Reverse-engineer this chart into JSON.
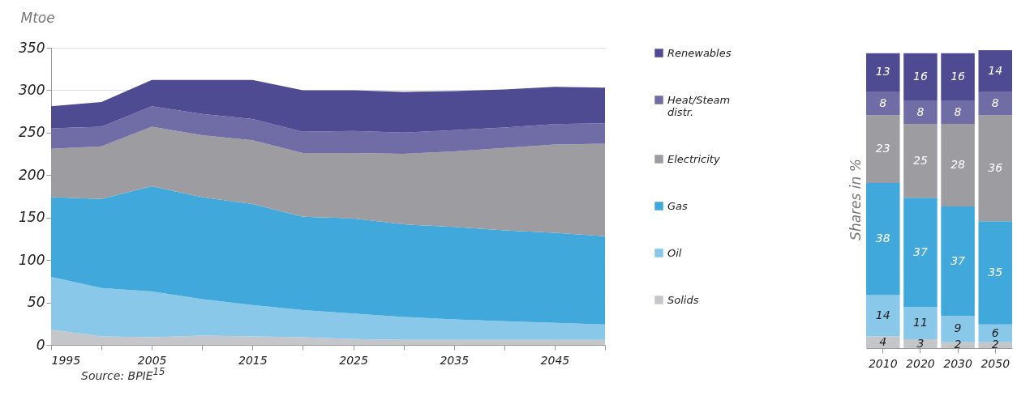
{
  "chart_data": [
    {
      "type": "area",
      "ylabel": "Mtoe",
      "stacked": true,
      "grid": "y",
      "legend": "right",
      "x": [
        1995,
        2000,
        2005,
        2010,
        2015,
        2020,
        2025,
        2030,
        2035,
        2040,
        2045,
        2050
      ],
      "xlim": [
        1995,
        2050
      ],
      "xticks": [
        1995,
        {
          "value": 2000,
          "label": null
        },
        2005,
        {
          "value": 2010,
          "label": null
        },
        2015,
        {
          "value": 2020,
          "label": null
        },
        2025,
        {
          "value": 2030,
          "label": null
        },
        2035,
        {
          "value": 2040,
          "label": null
        },
        2045,
        {
          "value": 2050,
          "label": null
        }
      ],
      "ylim": [
        0,
        350
      ],
      "yticks": [
        0,
        50,
        100,
        150,
        200,
        250,
        300,
        350
      ],
      "series": [
        {
          "name": "Solids",
          "color": "#c5c6ca",
          "values": [
            18,
            10,
            9,
            11,
            10,
            9,
            7,
            6,
            6,
            6,
            6,
            6
          ]
        },
        {
          "name": "Oil",
          "color": "#8ac8e9",
          "values": [
            62,
            57,
            54,
            43,
            37,
            32,
            30,
            27,
            24,
            22,
            20,
            18
          ]
        },
        {
          "name": "Gas",
          "color": "#41a8dc",
          "values": [
            94,
            105,
            124,
            120,
            119,
            110,
            112,
            109,
            109,
            107,
            106,
            104
          ]
        },
        {
          "name": "Electricity",
          "color": "#9d9ca1",
          "values": [
            57,
            62,
            70,
            73,
            75,
            75,
            77,
            83,
            89,
            97,
            104,
            109
          ]
        },
        {
          "name": "Heat/Steam distr.",
          "color": "#6f6ca6",
          "values": [
            24,
            23,
            24,
            25,
            25,
            25,
            26,
            25,
            25,
            24,
            24,
            24
          ]
        },
        {
          "name": "Renewables",
          "color": "#4f4b93",
          "values": [
            26,
            29,
            31,
            40,
            46,
            49,
            48,
            48,
            46,
            45,
            44,
            42
          ]
        }
      ],
      "annotations": [
        "Source: BPIE$^{15}$"
      ]
    },
    {
      "type": "bar",
      "ylabel": "Shares in %",
      "stacked": true,
      "data_labels": true,
      "categories": [
        "2010",
        "2020",
        "2030",
        "2050"
      ],
      "series": [
        {
          "color": "#c5c6ca",
          "values": [
            4,
            3,
            2,
            2
          ]
        },
        {
          "color": "#8ac8e9",
          "values": [
            14,
            11,
            9,
            6
          ]
        },
        {
          "color": "#41a8dc",
          "values": [
            38,
            37,
            37,
            35
          ]
        },
        {
          "color": "#9d9ca1",
          "values": [
            23,
            25,
            28,
            36
          ]
        },
        {
          "color": "#6f6ca6",
          "values": [
            8,
            8,
            8,
            8
          ]
        },
        {
          "color": "#4f4b93",
          "values": [
            13,
            16,
            16,
            14
          ]
        }
      ]
    }
  ]
}
